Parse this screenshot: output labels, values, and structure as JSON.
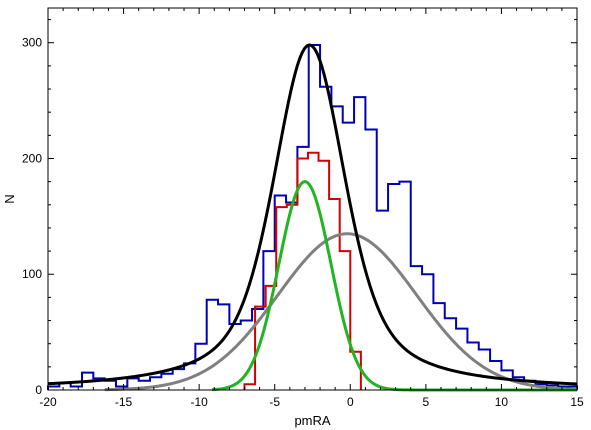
{
  "chart_data": {
    "type": "line",
    "title": "",
    "xlabel": "pmRA",
    "ylabel": "N",
    "xlim": [
      -20,
      15
    ],
    "ylim": [
      0,
      330
    ],
    "grid": false,
    "legend": "none",
    "x_ticks": [
      -20,
      -15,
      -10,
      -5,
      0,
      5,
      10,
      15
    ],
    "x_tick_labels": [
      "-20",
      "-15",
      "-10",
      "-5",
      "0",
      "5",
      "10",
      "15"
    ],
    "y_ticks": [
      0,
      100,
      200,
      300
    ],
    "y_tick_labels": [
      "0",
      "100",
      "200",
      "300"
    ],
    "histograms": [
      {
        "color": "#0000b4",
        "bin_edges": [
          -20,
          -19.25,
          -18.5,
          -17.75,
          -17,
          -16.25,
          -15.5,
          -14.75,
          -14,
          -13.25,
          -12.5,
          -11.75,
          -11,
          -10.25,
          -9.5,
          -8.75,
          -8,
          -7.25,
          -6.5,
          -5.75,
          -5,
          -4.25,
          -3.5,
          -2.75,
          -2,
          -1.25,
          -0.5,
          0.25,
          1,
          1.75,
          2.5,
          3.25,
          4,
          4.75,
          5.5,
          6.25,
          7,
          7.75,
          8.5,
          9.25,
          10,
          10.75,
          11.5,
          12.25,
          13,
          13.75,
          14.5,
          15
        ],
        "counts": [
          3,
          6,
          3,
          15,
          10,
          8,
          3,
          10,
          8,
          11,
          14,
          18,
          23,
          40,
          78,
          74,
          57,
          60,
          70,
          120,
          168,
          162,
          210,
          298,
          262,
          245,
          231,
          253,
          225,
          155,
          178,
          180,
          107,
          100,
          75,
          62,
          53,
          41,
          35,
          25,
          17,
          11,
          8,
          5,
          4,
          3,
          3
        ]
      },
      {
        "color": "#d40000",
        "bin_edges": [
          -7,
          -6.3,
          -5.6,
          -4.9,
          -4.2,
          -3.5,
          -2.8,
          -2.1,
          -1.4,
          -0.7,
          0,
          0.7
        ],
        "counts": [
          5,
          72,
          90,
          158,
          160,
          200,
          205,
          198,
          165,
          120,
          33
        ]
      }
    ],
    "curves": [
      {
        "color": "#000000",
        "shape": "pseudo-voigt",
        "amplitude": 298,
        "center": -2.7,
        "sigma": 2.2,
        "gamma": 3.3,
        "eta": 0.52
      },
      {
        "color": "#22b422",
        "shape": "gaussian",
        "amplitude": 180,
        "center": -3.0,
        "sigma": 1.72
      },
      {
        "color": "#808080",
        "shape": "gaussian",
        "amplitude": 135,
        "center": -0.2,
        "sigma": 4.6
      }
    ]
  }
}
